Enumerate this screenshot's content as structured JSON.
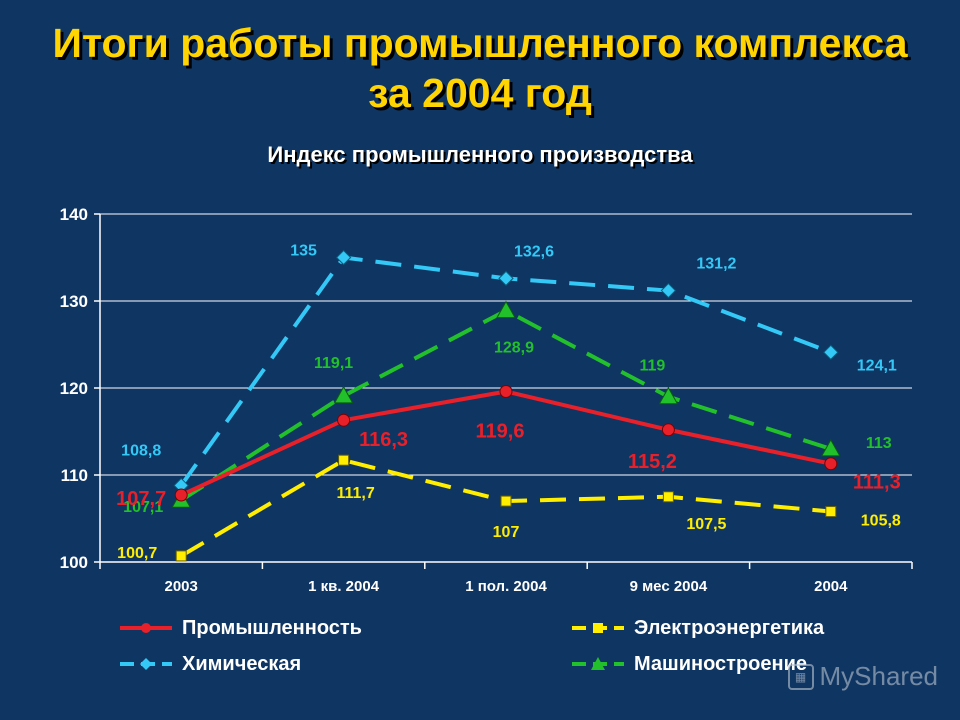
{
  "title": {
    "line1": "Итоги работы промышленного комплекса",
    "line2": "за 2004 год"
  },
  "colors": {
    "background": "#0f3563",
    "title": "#ffd400",
    "grid": "#ffffff"
  },
  "watermark": "MyShared",
  "chart_data": {
    "type": "line",
    "title": "Индекс промышленного производства",
    "categories": [
      "2003",
      "1 кв. 2004",
      "1 пол. 2004",
      "9 мес 2004",
      "2004"
    ],
    "ylim": [
      100,
      140
    ],
    "yticks": [
      100,
      110,
      120,
      130,
      140
    ],
    "grid": true,
    "legend_position": "bottom",
    "series": [
      {
        "name": "Промышленность",
        "values": [
          107.7,
          116.3,
          119.6,
          115.2,
          111.3
        ],
        "labels": [
          "107,7",
          "116,3",
          "119,6",
          "115,2",
          "111,3"
        ],
        "color": "#e8202a",
        "marker": "circle",
        "dashed": false
      },
      {
        "name": "Электроэнергетика",
        "values": [
          100.7,
          111.7,
          107,
          107.5,
          105.8
        ],
        "labels": [
          "100,7",
          "111,7",
          "107",
          "107,5",
          "105,8"
        ],
        "color": "#ffee00",
        "marker": "square",
        "dashed": true
      },
      {
        "name": "Химическая",
        "values": [
          108.8,
          135,
          132.6,
          131.2,
          124.1
        ],
        "labels": [
          "108,8",
          "135",
          "132,6",
          "131,2",
          "124,1"
        ],
        "color": "#33c8f5",
        "marker": "diamond",
        "dashed": true
      },
      {
        "name": "Машиностроение",
        "values": [
          107.1,
          119.1,
          128.9,
          119,
          113
        ],
        "labels": [
          "107,1",
          "119,1",
          "128,9",
          "119",
          "113"
        ],
        "color": "#22c02a",
        "marker": "triangle",
        "dashed": true
      }
    ]
  }
}
